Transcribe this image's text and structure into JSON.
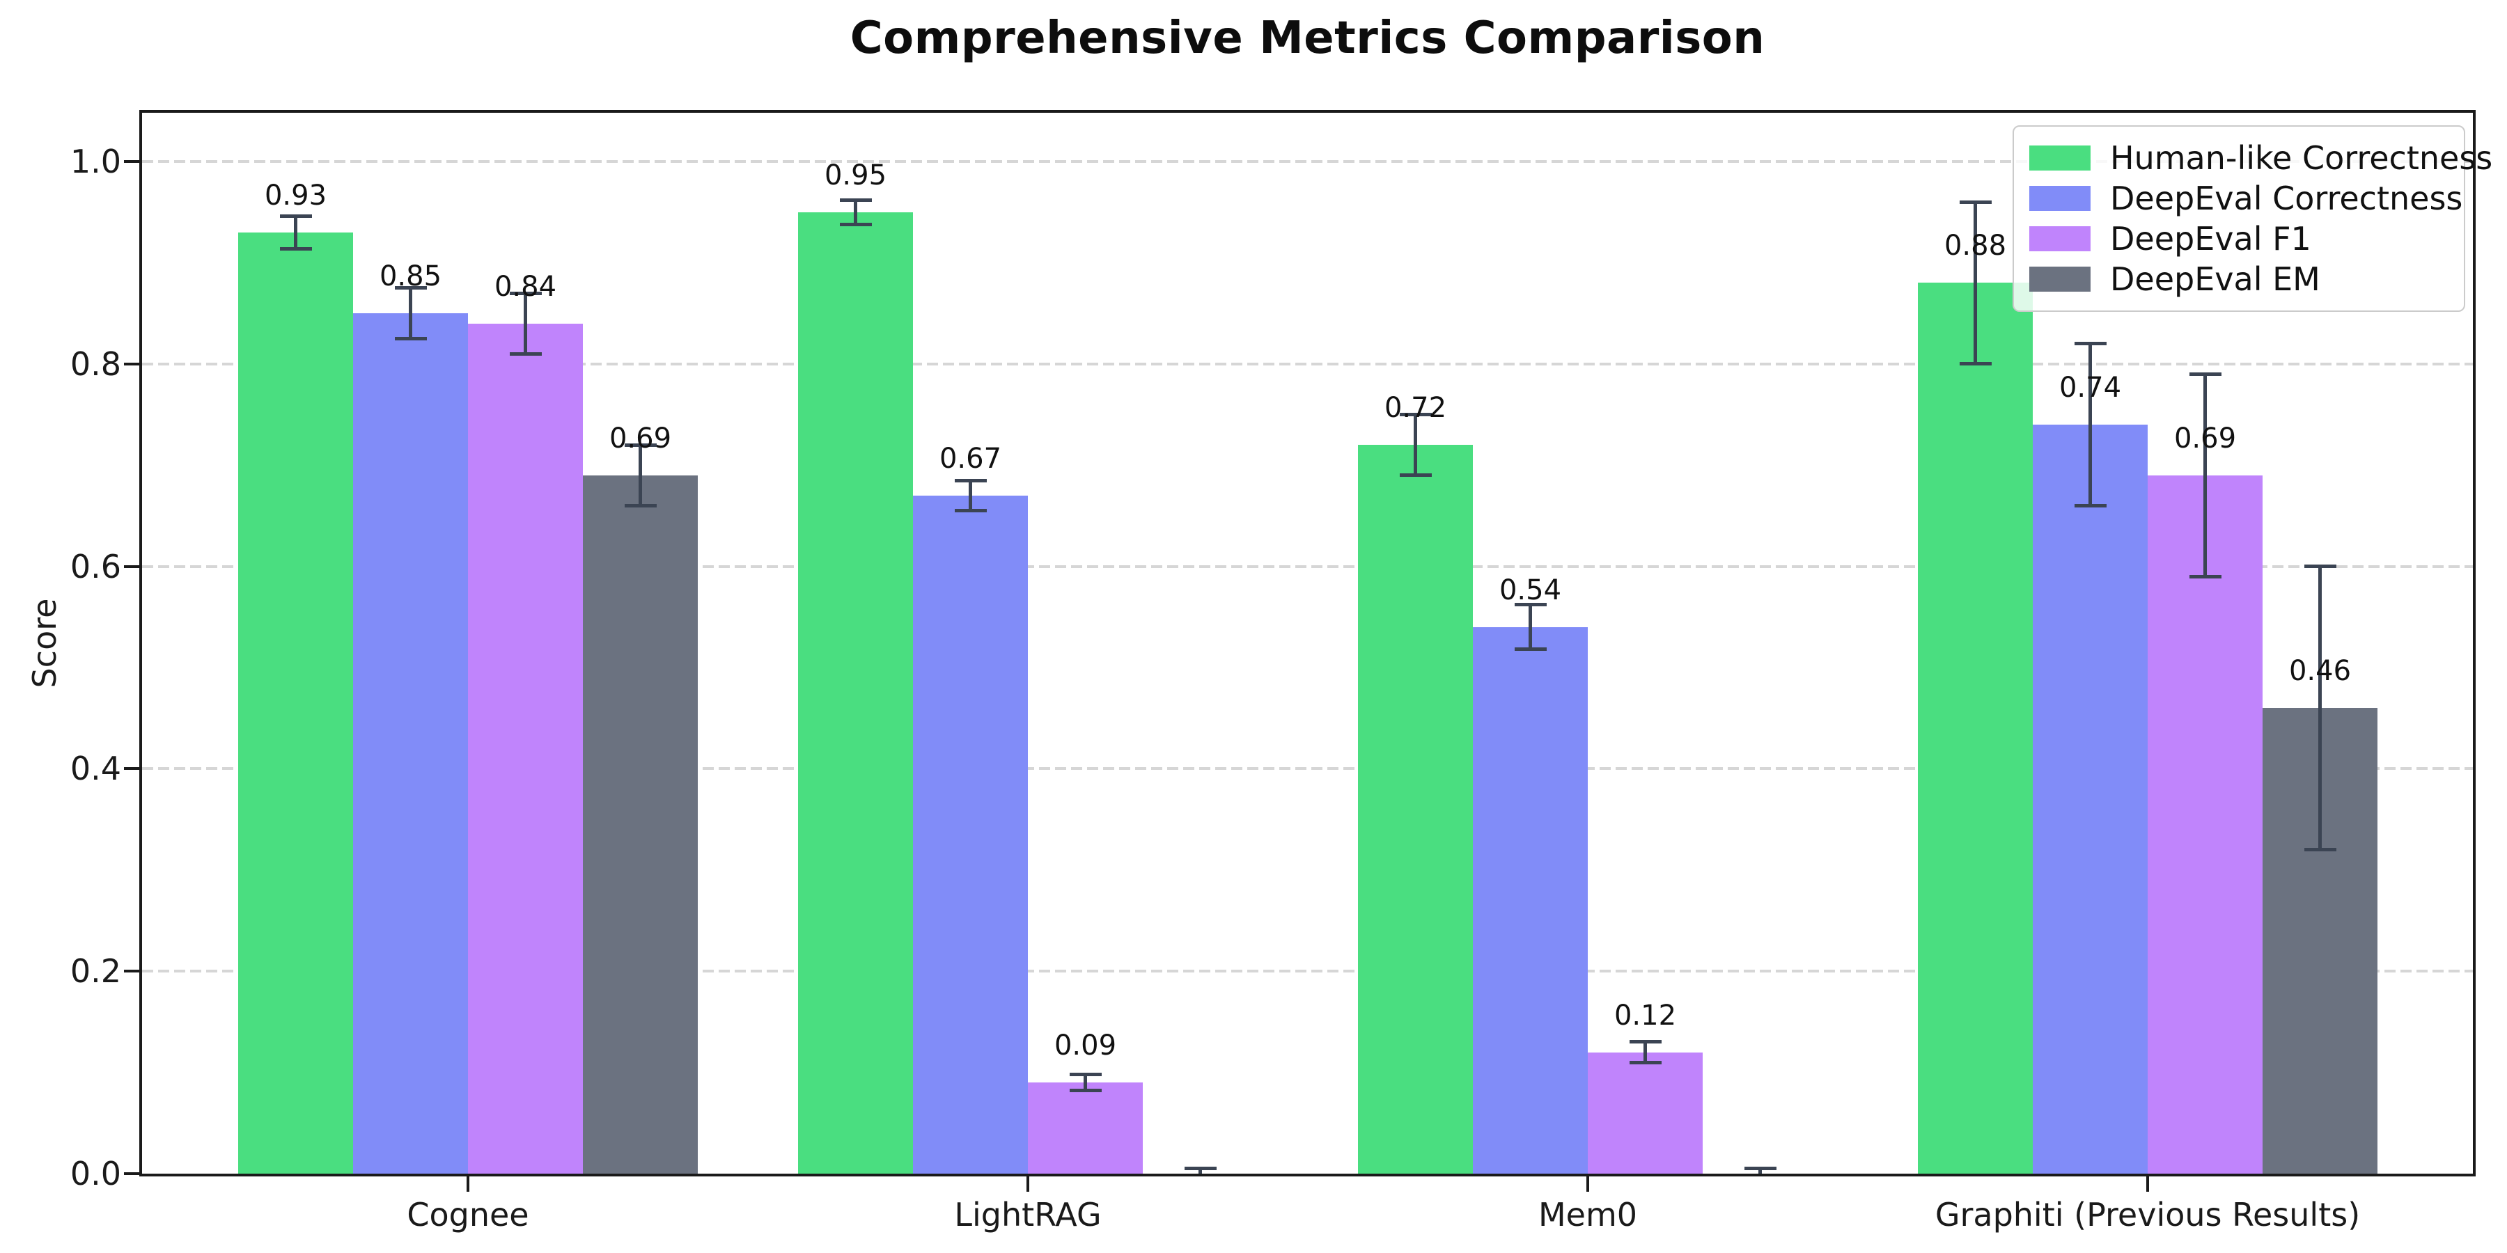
{
  "chart_data": {
    "type": "bar",
    "title": "Comprehensive Metrics Comparison",
    "ylabel": "Score",
    "xlabel": "",
    "categories": [
      "Cognee",
      "LightRAG",
      "Mem0",
      "Graphiti (Previous Results)"
    ],
    "series": [
      {
        "name": "Human-like Correctness",
        "color": "#4ade80",
        "values": [
          0.93,
          0.95,
          0.72,
          0.88
        ],
        "errors": [
          0.016,
          0.012,
          0.03,
          0.08
        ],
        "labels": [
          "0.93",
          "0.95",
          "0.72",
          "0.88"
        ]
      },
      {
        "name": "DeepEval Correctness",
        "color": "#818cf8",
        "values": [
          0.85,
          0.67,
          0.54,
          0.74
        ],
        "errors": [
          0.025,
          0.015,
          0.022,
          0.08
        ],
        "labels": [
          "0.85",
          "0.67",
          "0.54",
          "0.74"
        ]
      },
      {
        "name": "DeepEval F1",
        "color": "#c084fc",
        "values": [
          0.84,
          0.09,
          0.12,
          0.69
        ],
        "errors": [
          0.03,
          0.008,
          0.01,
          0.1
        ],
        "labels": [
          "0.84",
          "0.09",
          "0.12",
          "0.69"
        ]
      },
      {
        "name": "DeepEval EM",
        "color": "#6b7280",
        "values": [
          0.69,
          0.0,
          0.0,
          0.46
        ],
        "errors": [
          0.03,
          0.005,
          0.005,
          0.14
        ],
        "labels": [
          "0.69",
          "",
          "",
          "0.46"
        ]
      }
    ],
    "ytick_labels": [
      "0.0",
      "0.2",
      "0.4",
      "0.6",
      "0.8",
      "1.0"
    ],
    "ytick_values": [
      0.0,
      0.2,
      0.4,
      0.6,
      0.8,
      1.0
    ],
    "ylim": [
      0,
      1.05
    ],
    "grid": {
      "axis": "y",
      "style": "dashed",
      "color": "#d6d6d6"
    },
    "legend_position": "upper-right",
    "colors": {
      "error_bar": "#3b4453",
      "axis": "#1a1a1a",
      "background": "#ffffff"
    }
  }
}
